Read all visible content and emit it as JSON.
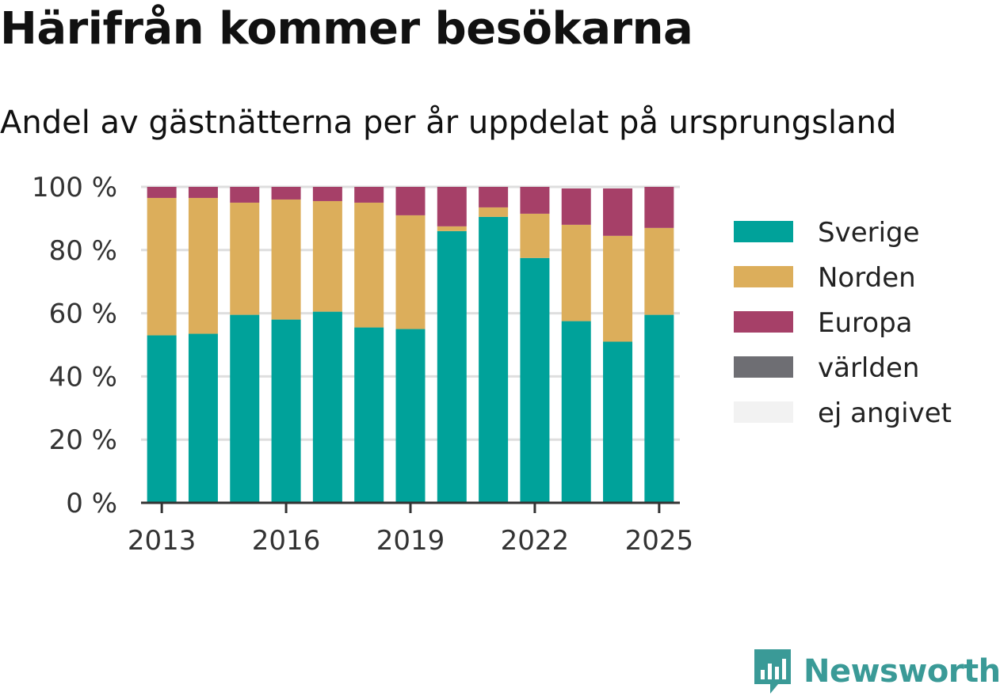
{
  "title": "Härifrån kommer besökarna",
  "subtitle": "Andel av gästnätterna per år uppdelat på ursprungsland",
  "brand": {
    "name": "Newsworthy"
  },
  "chart_data": {
    "type": "bar",
    "stacked": true,
    "categories": [
      "2013",
      "2014",
      "2015",
      "2016",
      "2017",
      "2018",
      "2019",
      "2020",
      "2021",
      "2022",
      "2023",
      "2024",
      "2025"
    ],
    "x_tick_labels": [
      "2013",
      "2016",
      "2019",
      "2022",
      "2025"
    ],
    "y_tick_labels": [
      "0 %",
      "20 %",
      "40 %",
      "60 %",
      "80 %",
      "100 %"
    ],
    "ylim": [
      0,
      100
    ],
    "grid": true,
    "legend_position": "right",
    "series": [
      {
        "name": "Sverige",
        "color": "#00a29a",
        "values": [
          53,
          53.5,
          59.5,
          58,
          60.5,
          55.5,
          55,
          86,
          90.5,
          77.5,
          57.5,
          51,
          59.5
        ]
      },
      {
        "name": "Norden",
        "color": "#dcae5b",
        "values": [
          43.5,
          43,
          35.5,
          38,
          35,
          39.5,
          36,
          1.5,
          3,
          14,
          30.5,
          33.5,
          27.5
        ]
      },
      {
        "name": "Europa",
        "color": "#a64068",
        "values": [
          3.5,
          3.5,
          5,
          4,
          4.5,
          5,
          9,
          12.5,
          6.5,
          8.5,
          11.5,
          15,
          13
        ]
      },
      {
        "name": "världen",
        "color": "#6e6e73",
        "values": [
          0,
          0,
          0,
          0,
          0,
          0,
          0,
          0,
          0,
          0,
          0,
          0,
          0
        ]
      },
      {
        "name": "ej angivet",
        "color": "#f2f2f2",
        "values": [
          0,
          0,
          0,
          0,
          0,
          0,
          0,
          0,
          0,
          0,
          0,
          0,
          0
        ]
      }
    ]
  }
}
